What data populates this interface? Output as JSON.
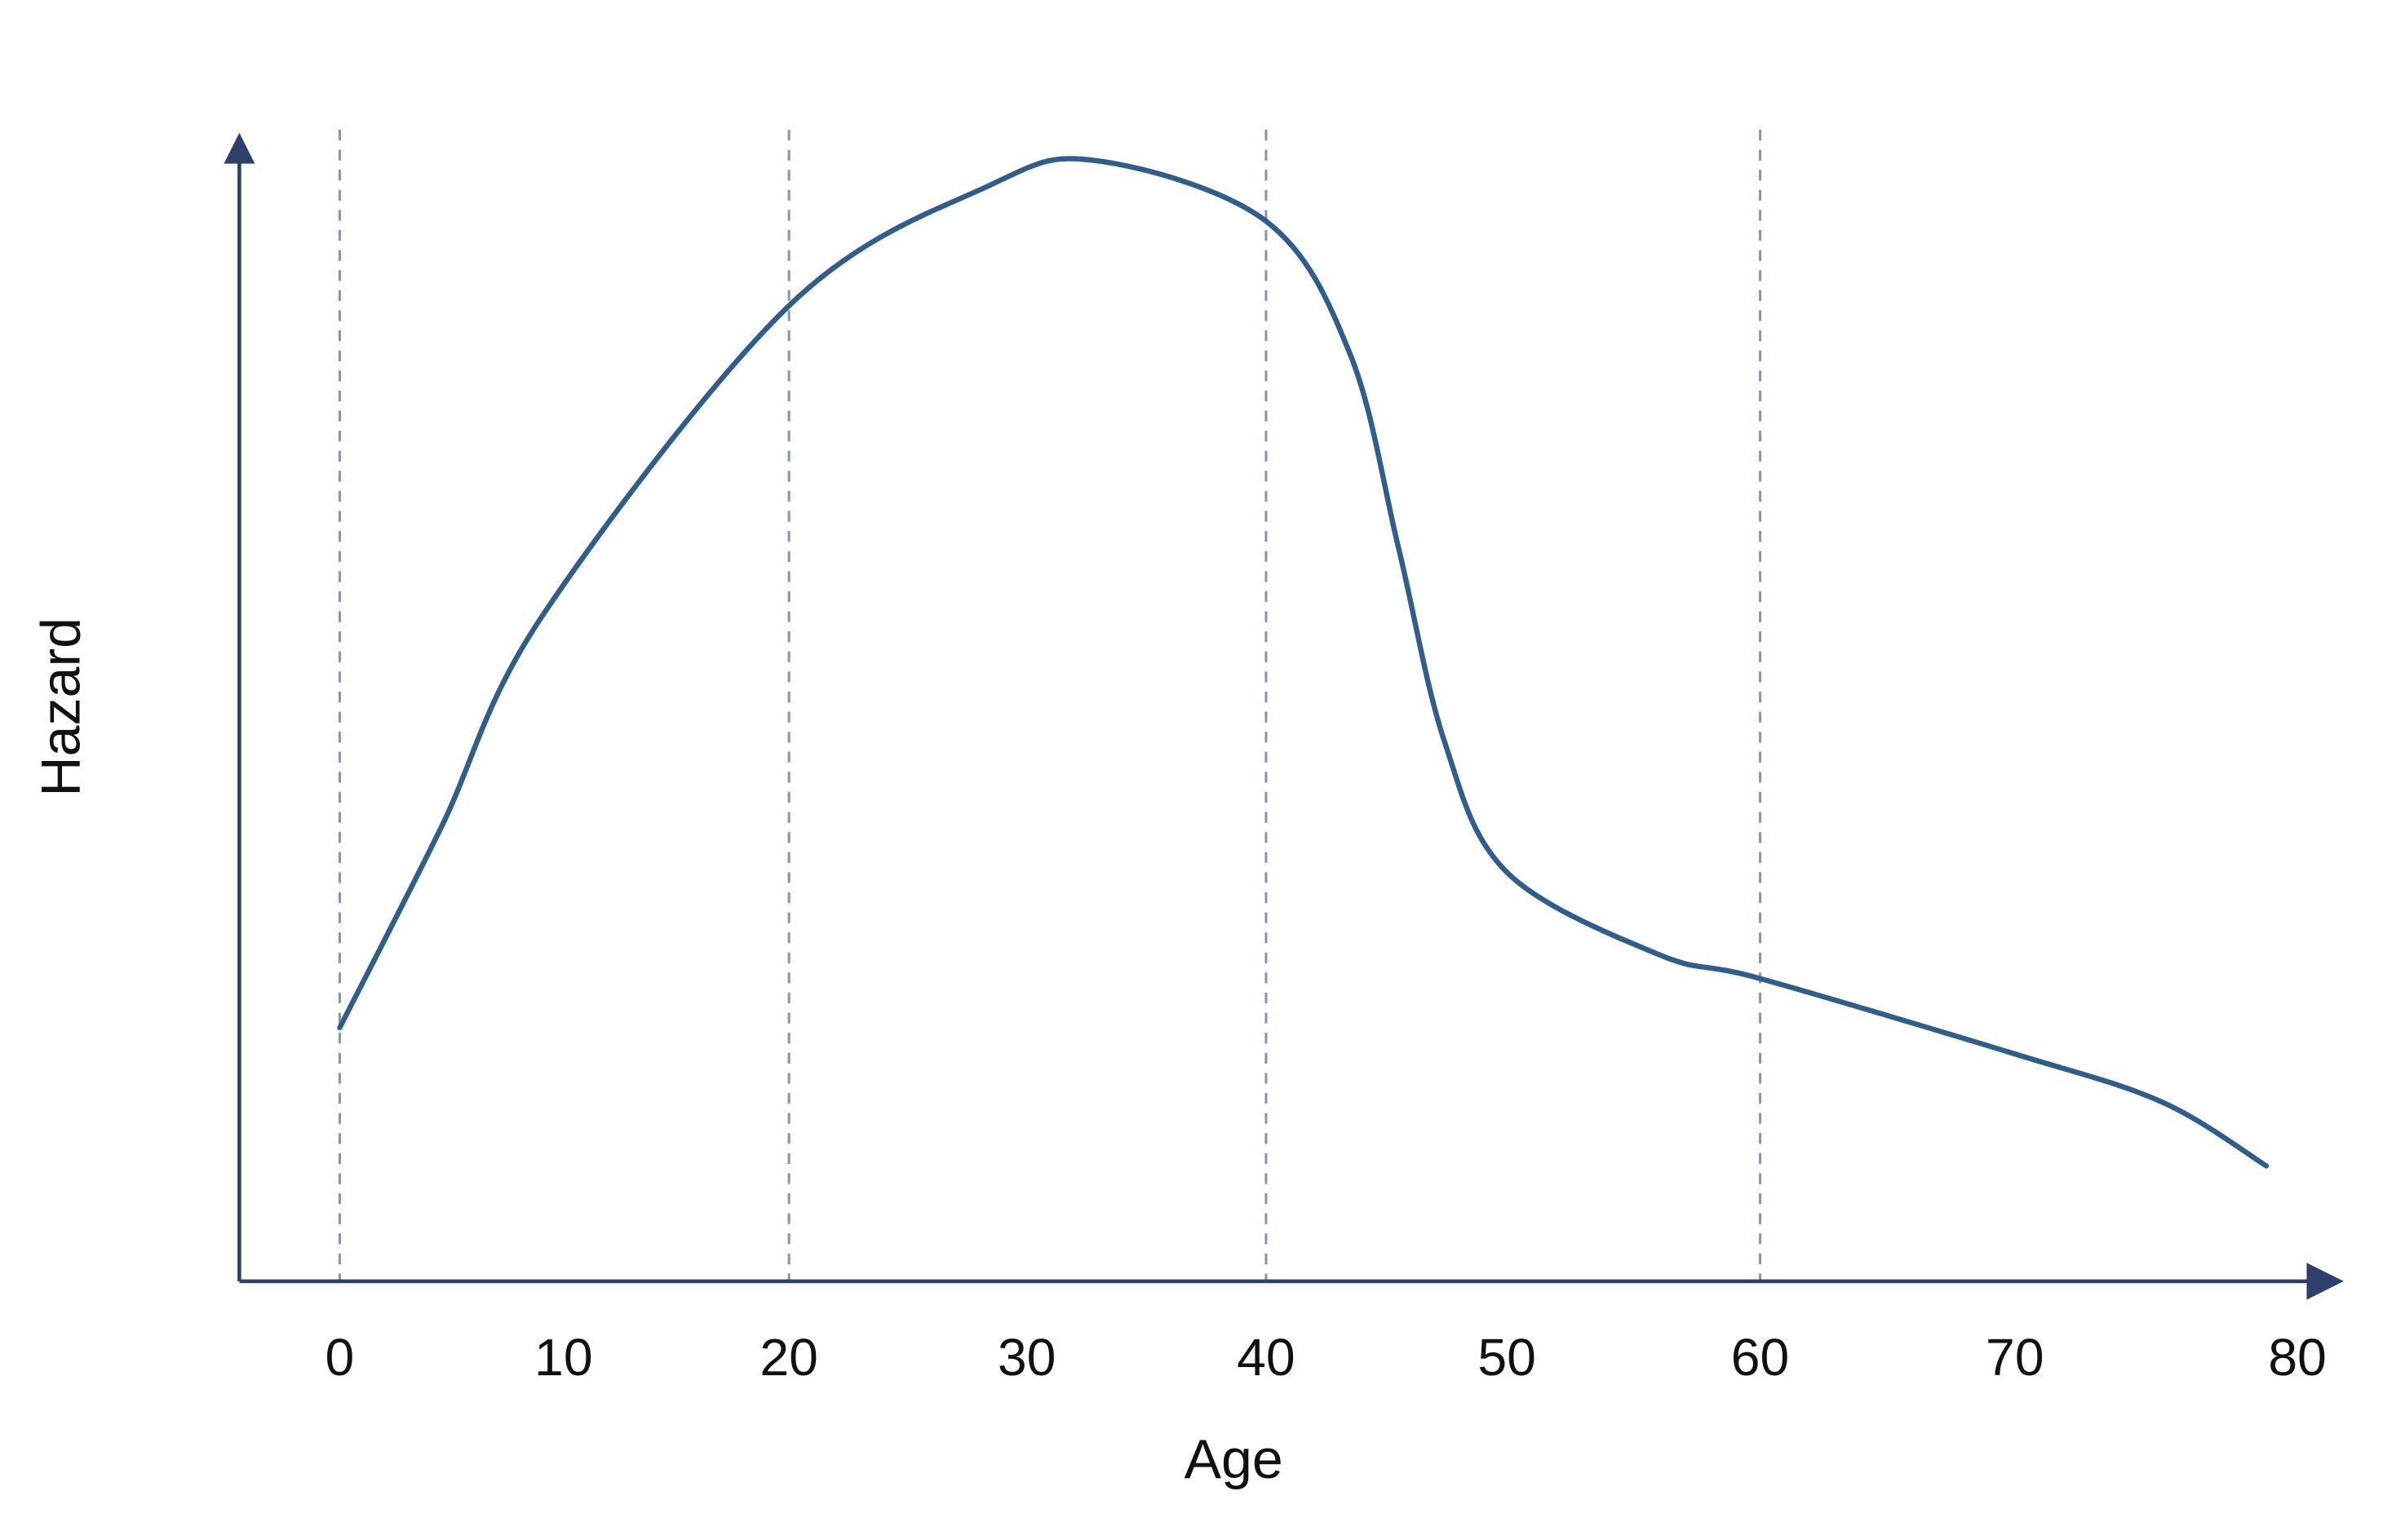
{
  "chart_data": {
    "type": "line",
    "x_label": "Age",
    "y_label": "Hazard",
    "x": [
      0,
      4.5,
      9,
      20,
      28.4,
      32.9,
      40,
      43.5,
      45.5,
      47.4,
      50,
      56,
      60,
      70,
      75.2,
      78.9
    ],
    "series": [
      {
        "name": "Hazard",
        "color": "#2f5d8c",
        "values": [
          22.2,
          39.6,
          58.1,
          85.4,
          95.9,
          98.1,
          92.8,
          81.1,
          64.2,
          47.3,
          35.8,
          28.6,
          26.5,
          19.9,
          15.7,
          10.1
        ]
      }
    ],
    "xlim": [
      -5,
      82
    ],
    "ylim": [
      0,
      100
    ],
    "xticks": [
      0,
      10,
      20,
      30,
      40,
      50,
      60,
      70,
      80
    ],
    "reference_lines": [
      0,
      20,
      40,
      60
    ],
    "axis_color": "#2e3f6b",
    "reference_color": "#8a93ad"
  }
}
